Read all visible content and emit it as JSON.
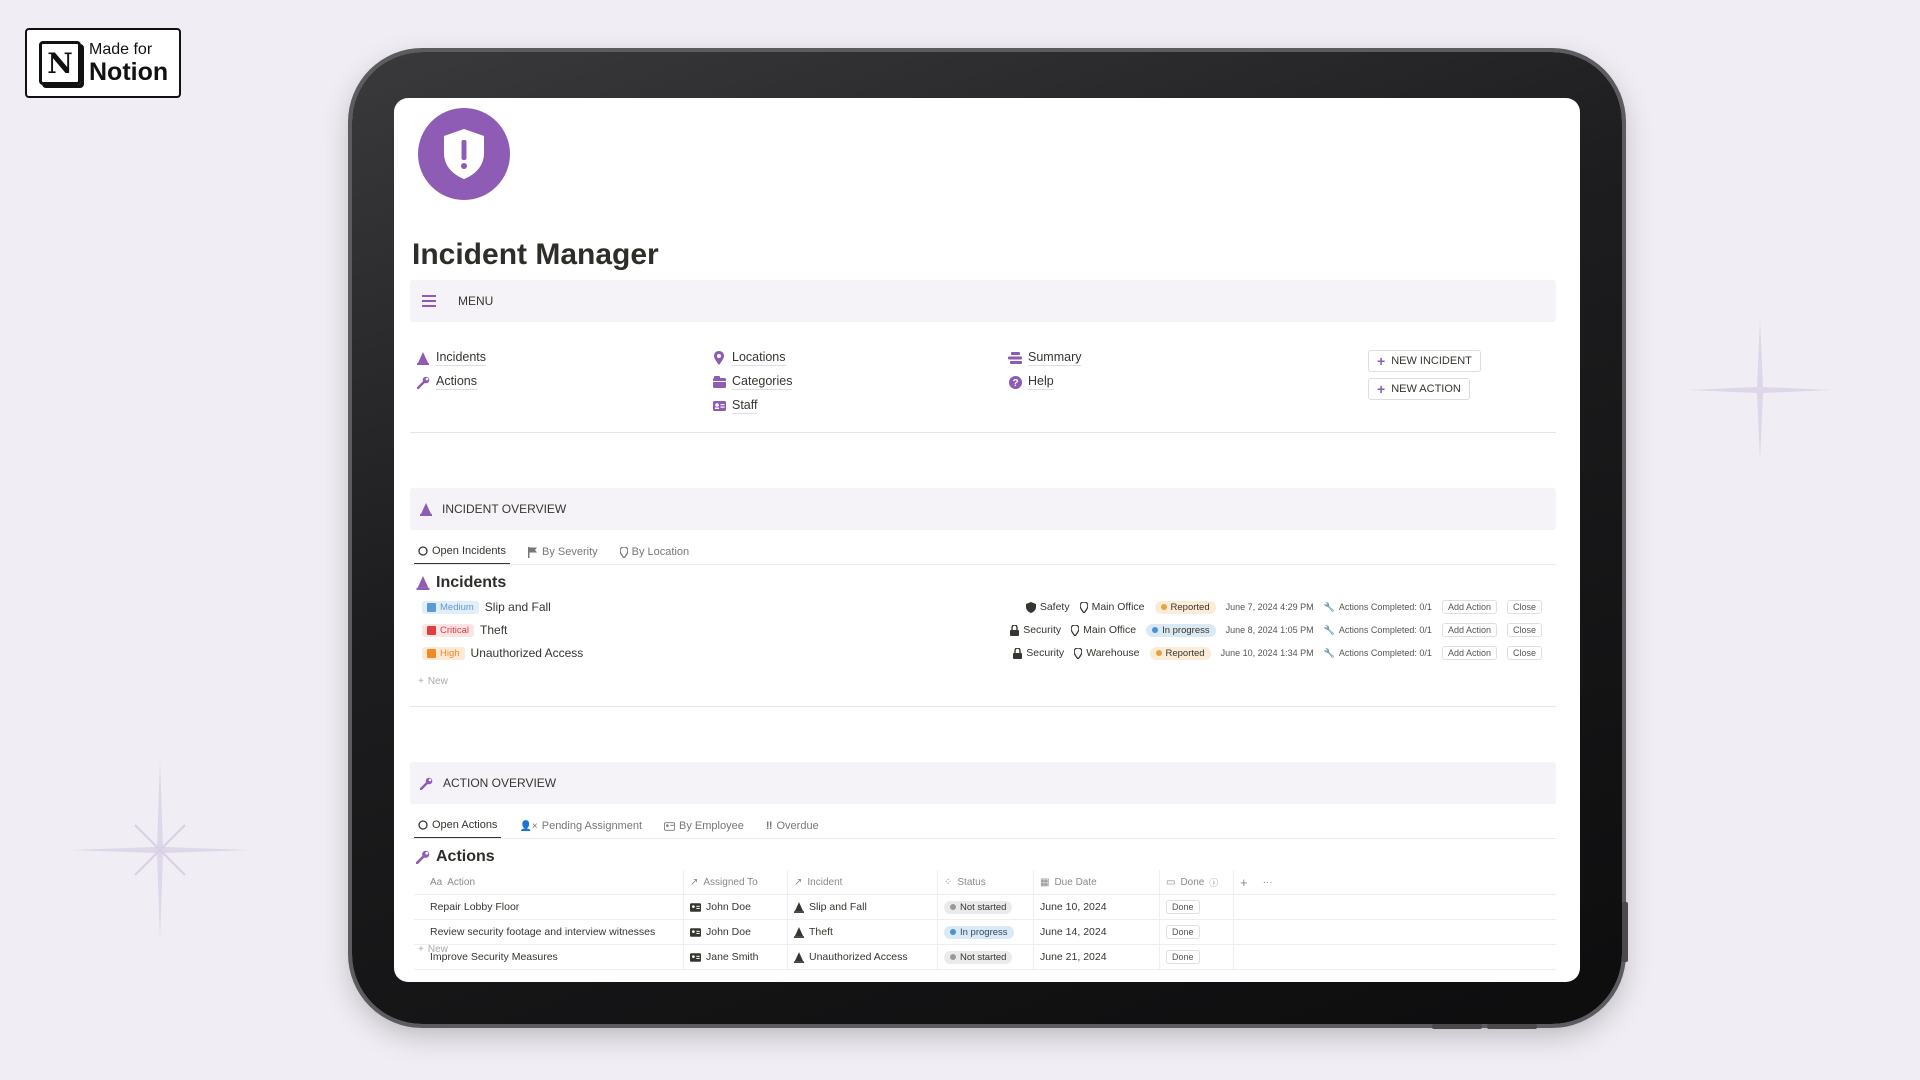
{
  "badge": {
    "line1": "Made for",
    "line2": "Notion",
    "logo_letter": "N"
  },
  "page": {
    "title": "Incident Manager",
    "icon": "shield-alert-icon",
    "accent": "#8e5bb5"
  },
  "menu": {
    "label": "MENU"
  },
  "nav": {
    "col1": [
      {
        "label": "Incidents",
        "icon": "cone-icon"
      },
      {
        "label": "Actions",
        "icon": "wrench-icon"
      }
    ],
    "col2": [
      {
        "label": "Locations",
        "icon": "pin-icon"
      },
      {
        "label": "Categories",
        "icon": "folder-icon"
      },
      {
        "label": "Staff",
        "icon": "id-card-icon"
      }
    ],
    "col3": [
      {
        "label": "Summary",
        "icon": "stack-icon"
      },
      {
        "label": "Help",
        "icon": "help-icon"
      }
    ],
    "buttons": {
      "new_incident": "NEW INCIDENT",
      "new_action": "NEW ACTION"
    }
  },
  "incident_overview": {
    "heading": "INCIDENT OVERVIEW",
    "tabs": [
      "Open Incidents",
      "By Severity",
      "By Location"
    ],
    "db_title": "Incidents",
    "rows": [
      {
        "severity": "Medium",
        "sev_color": "#5b9bd5",
        "sev_bg": "#e3eef8",
        "name": "Slip and Fall",
        "category": "Safety",
        "location": "Main Office",
        "status": "Reported",
        "status_color": "#e8a13c",
        "status_bg": "#fbecd7",
        "date": "June 7, 2024 4:29 PM",
        "actions": "Actions Completed: 0/1",
        "add": "Add Action",
        "close": "Close"
      },
      {
        "severity": "Critical",
        "sev_color": "#e03e3e",
        "sev_bg": "#fbe4e4",
        "name": "Theft",
        "category": "Security",
        "location": "Main Office",
        "status": "In progress",
        "status_color": "#4a90d9",
        "status_bg": "#dbe9f5",
        "date": "June 8, 2024 1:05 PM",
        "actions": "Actions Completed: 0/1",
        "add": "Add Action",
        "close": "Close"
      },
      {
        "severity": "High",
        "sev_color": "#f08a24",
        "sev_bg": "#fde9d6",
        "name": "Unauthorized Access",
        "category": "Security",
        "location": "Warehouse",
        "status": "Reported",
        "status_color": "#e8a13c",
        "status_bg": "#fbecd7",
        "date": "June 10, 2024 1:34 PM",
        "actions": "Actions Completed: 0/1",
        "add": "Add Action",
        "close": "Close"
      }
    ],
    "new_label": "New"
  },
  "action_overview": {
    "heading": "ACTION OVERVIEW",
    "tabs": [
      "Open Actions",
      "Pending Assignment",
      "By Employee",
      "Overdue"
    ],
    "db_title": "Actions",
    "columns": [
      "Action",
      "Assigned To",
      "Incident",
      "Status",
      "Due Date",
      "Done"
    ],
    "rows": [
      {
        "action": "Repair Lobby Floor",
        "assigned": "John Doe",
        "incident": "Slip and Fall",
        "status": "Not started",
        "due": "June 10, 2024",
        "done": "Done"
      },
      {
        "action": "Review security footage and interview witnesses",
        "assigned": "John Doe",
        "incident": "Theft",
        "status": "In progress",
        "due": "June 14, 2024",
        "done": "Done"
      },
      {
        "action": "Improve Security Measures",
        "assigned": "Jane Smith",
        "incident": "Unauthorized Access",
        "status": "Not started",
        "due": "June 21, 2024",
        "done": "Done"
      }
    ],
    "new_label": "New"
  }
}
